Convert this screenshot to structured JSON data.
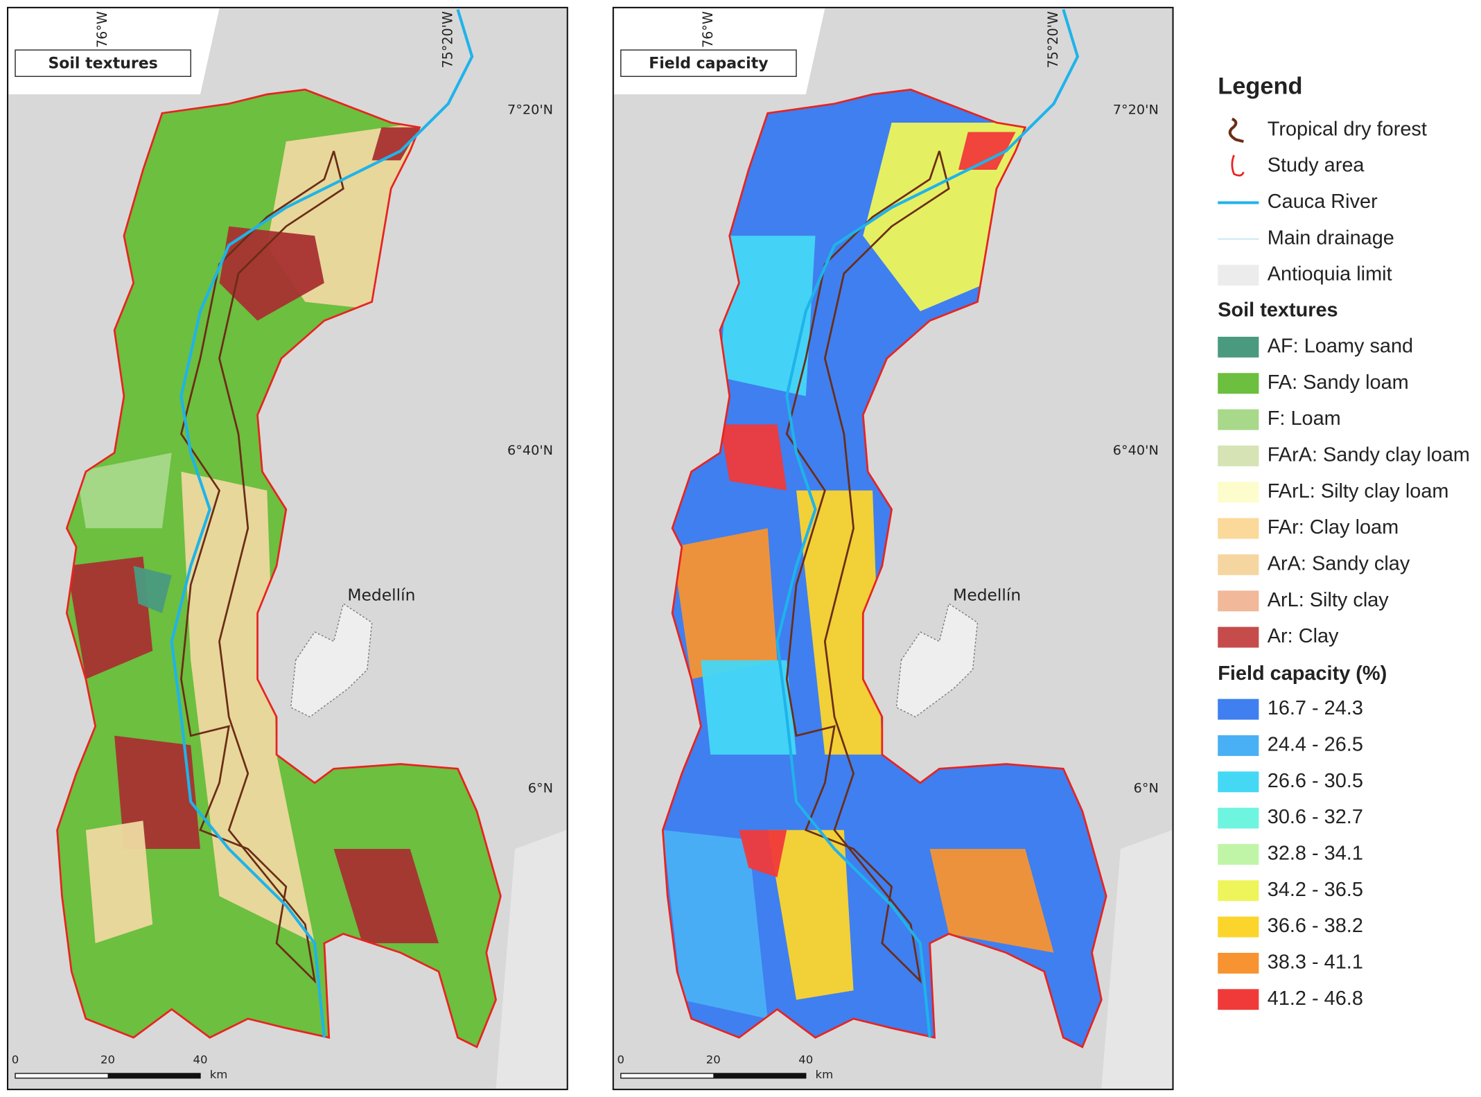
{
  "panels": [
    {
      "title": "Soil textures",
      "lon_labels": [
        "76°W",
        "75°20'W"
      ],
      "lat_labels": [
        "7°20'N",
        "6°40'N",
        "6°N"
      ],
      "city": "Medellín",
      "scale_labels": [
        "0",
        "20",
        "40"
      ],
      "scale_unit": "km"
    },
    {
      "title": "Field capacity",
      "lon_labels": [
        "76°W",
        "75°20'W"
      ],
      "lat_labels": [
        "7°20'N",
        "6°40'N",
        "6°N"
      ],
      "city": "Medellín",
      "scale_labels": [
        "0",
        "20",
        "40"
      ],
      "scale_unit": "km"
    }
  ],
  "legend": {
    "title": "Legend",
    "items": [
      "Tropical dry forest",
      "Study area",
      "Cauca River",
      "Main drainage",
      "Antioquia limit"
    ],
    "soil_title": "Soil textures",
    "soil_items": [
      {
        "label": "AF: Loamy sand",
        "color": "#4a9a80"
      },
      {
        "label": "FA: Sandy loam",
        "color": "#6cbf3f"
      },
      {
        "label": "F: Loam",
        "color": "#a8d88a"
      },
      {
        "label": "FArA: Sandy clay loam",
        "color": "#d5e3b5"
      },
      {
        "label": "FArL: Silty clay loam",
        "color": "#fdfccc"
      },
      {
        "label": "FAr: Clay loam",
        "color": "#fbd99a"
      },
      {
        "label": "ArA: Sandy clay",
        "color": "#f6d6a0"
      },
      {
        "label": "ArL: Silty clay",
        "color": "#f2b89a"
      },
      {
        "label": "Ar: Clay",
        "color": "#c64b4b"
      }
    ],
    "fc_title": "Field capacity (%)",
    "fc_items": [
      {
        "label": "16.7 - 24.3",
        "color": "#3f7ff0"
      },
      {
        "label": "24.4 - 26.5",
        "color": "#4ab0f5"
      },
      {
        "label": "26.6 - 30.5",
        "color": "#45d8f5"
      },
      {
        "label": "30.6 - 32.7",
        "color": "#6ef5e0"
      },
      {
        "label": "32.8 - 34.1",
        "color": "#c0f5a8"
      },
      {
        "label": "34.2 - 36.5",
        "color": "#eef55a"
      },
      {
        "label": "36.6 - 38.2",
        "color": "#fcd52c"
      },
      {
        "label": "38.3 - 41.1",
        "color": "#f79331"
      },
      {
        "label": "41.2 - 46.8",
        "color": "#f03a3a"
      }
    ]
  }
}
